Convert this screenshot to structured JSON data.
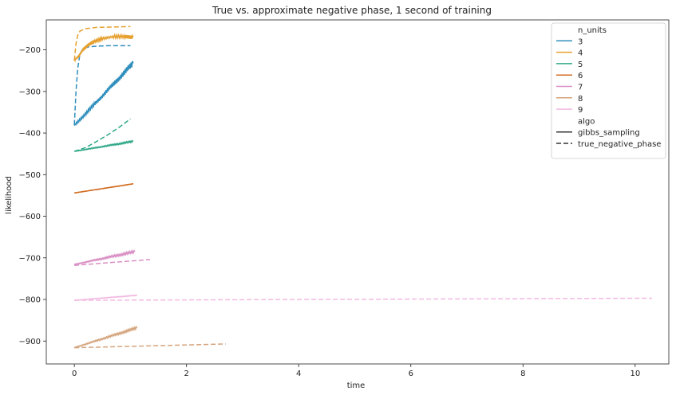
{
  "chart_data": {
    "type": "line",
    "title": "True vs. approximate negative phase, 1 second of training",
    "xlabel": "time",
    "ylabel": "likelihood",
    "xlim": [
      -0.5,
      10.6
    ],
    "ylim": [
      -955,
      -128
    ],
    "xticks": [
      0,
      2,
      4,
      6,
      8,
      10
    ],
    "yticks": [
      -900,
      -800,
      -700,
      -600,
      -500,
      -400,
      -300,
      -200
    ],
    "grid": false,
    "legend": {
      "placement": "top-right",
      "title_hue": "n_units",
      "hue_entries": [
        "3",
        "4",
        "5",
        "6",
        "7",
        "8",
        "9"
      ],
      "title_style": "algo",
      "style_entries": [
        "gibbs_sampling",
        "true_negative_phase"
      ]
    },
    "colors": {
      "3": "#2f8ebd",
      "4": "#e6a02f",
      "5": "#2fa888",
      "6": "#d16b1f",
      "7": "#d98fc4",
      "8": "#d4a47d",
      "9": "#f2b9e1"
    },
    "series": [
      {
        "name": "3",
        "algo": "gibbs_sampling",
        "start": [
          0,
          -382
        ],
        "end": [
          1.05,
          -232
        ],
        "noise": 16
      },
      {
        "name": "3",
        "algo": "true_negative_phase",
        "points": [
          [
            0,
            -380
          ],
          [
            0.03,
            -300
          ],
          [
            0.06,
            -245
          ],
          [
            0.1,
            -210
          ],
          [
            0.15,
            -198
          ],
          [
            0.25,
            -193
          ],
          [
            0.4,
            -191
          ],
          [
            0.6,
            -190
          ],
          [
            1.0,
            -190
          ]
        ]
      },
      {
        "name": "4",
        "algo": "gibbs_sampling",
        "points": [
          [
            0,
            -225
          ],
          [
            0.08,
            -215
          ],
          [
            0.15,
            -200
          ],
          [
            0.25,
            -188
          ],
          [
            0.35,
            -180
          ],
          [
            0.5,
            -173
          ],
          [
            0.7,
            -168
          ],
          [
            0.9,
            -168
          ],
          [
            1.05,
            -170
          ]
        ],
        "noise": 8
      },
      {
        "name": "4",
        "algo": "true_negative_phase",
        "points": [
          [
            0,
            -225
          ],
          [
            0.03,
            -185
          ],
          [
            0.06,
            -165
          ],
          [
            0.1,
            -155
          ],
          [
            0.2,
            -149
          ],
          [
            0.4,
            -146
          ],
          [
            0.7,
            -145
          ],
          [
            1.0,
            -144
          ]
        ]
      },
      {
        "name": "5",
        "algo": "gibbs_sampling",
        "start": [
          0,
          -444
        ],
        "end": [
          1.05,
          -420
        ],
        "noise": 4
      },
      {
        "name": "5",
        "algo": "true_negative_phase",
        "points": [
          [
            0,
            -444
          ],
          [
            0.2,
            -435
          ],
          [
            0.4,
            -420
          ],
          [
            0.6,
            -404
          ],
          [
            0.8,
            -386
          ],
          [
            1.0,
            -366
          ]
        ]
      },
      {
        "name": "6",
        "algo": "gibbs_sampling",
        "start": [
          0,
          -544
        ],
        "end": [
          1.05,
          -522
        ],
        "noise": 1
      },
      {
        "name": "6",
        "algo": "true_negative_phase",
        "start": [
          0,
          -544
        ],
        "end": [
          1.05,
          -522
        ]
      },
      {
        "name": "7",
        "algo": "gibbs_sampling",
        "start": [
          0,
          -716
        ],
        "end": [
          1.08,
          -685
        ],
        "noise": 6
      },
      {
        "name": "7",
        "algo": "true_negative_phase",
        "start": [
          0,
          -718
        ],
        "end": [
          1.35,
          -704
        ]
      },
      {
        "name": "8",
        "algo": "gibbs_sampling",
        "start": [
          0,
          -916
        ],
        "end": [
          1.12,
          -868
        ],
        "noise": 6
      },
      {
        "name": "8",
        "algo": "true_negative_phase",
        "start": [
          0,
          -916
        ],
        "end": [
          2.7,
          -907
        ]
      },
      {
        "name": "9",
        "algo": "gibbs_sampling",
        "start": [
          0,
          -802
        ],
        "end": [
          1.12,
          -790
        ],
        "noise": 2
      },
      {
        "name": "9",
        "algo": "true_negative_phase",
        "start": [
          0,
          -802
        ],
        "end": [
          10.3,
          -797
        ]
      }
    ]
  }
}
